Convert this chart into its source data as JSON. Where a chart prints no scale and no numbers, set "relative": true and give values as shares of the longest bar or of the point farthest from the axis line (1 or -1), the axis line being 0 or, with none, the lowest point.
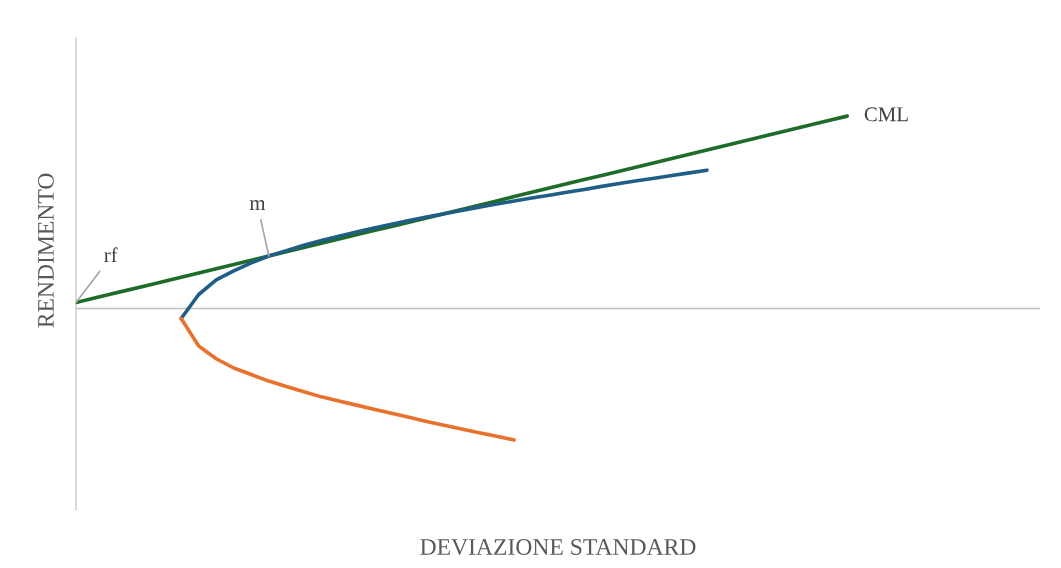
{
  "chart_data": {
    "type": "line",
    "relative": true,
    "xlabel": "DEVIAZIONE STANDARD",
    "ylabel": "RENDIMENTO",
    "legend": false,
    "marker": "none",
    "line_style": "solid",
    "categories": [
      null,
      null,
      null,
      null,
      null,
      null,
      null,
      null,
      null,
      null,
      null,
      null,
      null,
      null,
      null,
      null,
      null,
      null,
      null,
      null,
      null,
      null,
      null,
      null,
      null,
      null,
      null,
      null,
      null,
      null,
      null,
      null,
      null,
      null,
      null,
      null,
      null,
      null,
      null,
      null,
      null,
      null,
      null,
      null,
      null,
      null,
      null,
      null,
      null,
      null,
      null,
      null,
      null,
      null,
      null,
      null
    ],
    "series": [
      {
        "name": "CML",
        "color": "#1e6b2a",
        "values": [
          0.031,
          0.053,
          0.075,
          0.097,
          0.119,
          0.141,
          0.163,
          0.185,
          0.207,
          0.229,
          0.251,
          0.273,
          0.295,
          0.317,
          0.339,
          0.361,
          0.383,
          0.405,
          0.427,
          0.449,
          0.471,
          0.493,
          0.515,
          0.537,
          0.559,
          0.582,
          0.604,
          0.626,
          0.648,
          0.67,
          0.692,
          0.714,
          0.736,
          0.758,
          0.78,
          0.802,
          0.824,
          0.846,
          0.868,
          0.89,
          0.912,
          0.934,
          0.956,
          0.978,
          1,
          null,
          null,
          null,
          null,
          null,
          null,
          null,
          null,
          null,
          null,
          null
        ]
      },
      {
        "color": "#1f5f86",
        "values": [
          null,
          null,
          null,
          null,
          null,
          null,
          -0.052,
          0.073,
          0.149,
          0.196,
          0.237,
          0.273,
          0.301,
          0.329,
          0.353,
          0.376,
          0.398,
          0.418,
          0.438,
          0.457,
          0.475,
          0.493,
          0.51,
          0.527,
          0.543,
          0.559,
          0.574,
          0.589,
          0.604,
          0.619,
          0.635,
          0.65,
          0.664,
          0.677,
          0.691,
          0.705,
          0.719,
          null,
          null,
          null,
          null,
          null,
          null,
          null,
          null,
          null,
          null,
          null,
          null,
          null,
          null,
          null,
          null,
          null,
          null,
          null
        ]
      },
      {
        "color": "#e8712d",
        "values": [
          null,
          null,
          null,
          null,
          null,
          null,
          -0.052,
          -0.195,
          -0.261,
          -0.309,
          -0.343,
          -0.377,
          -0.405,
          -0.432,
          -0.459,
          -0.481,
          -0.502,
          -0.523,
          -0.544,
          -0.565,
          -0.587,
          -0.607,
          -0.626,
          -0.645,
          -0.664,
          -0.683,
          null,
          null,
          null,
          null,
          null,
          null,
          null,
          null,
          null,
          null,
          null,
          null,
          null,
          null,
          null,
          null,
          null,
          null,
          null,
          null,
          null,
          null,
          null,
          null,
          null,
          null,
          null,
          null,
          null,
          null
        ]
      }
    ],
    "annotations": [
      "rf",
      "m"
    ]
  }
}
